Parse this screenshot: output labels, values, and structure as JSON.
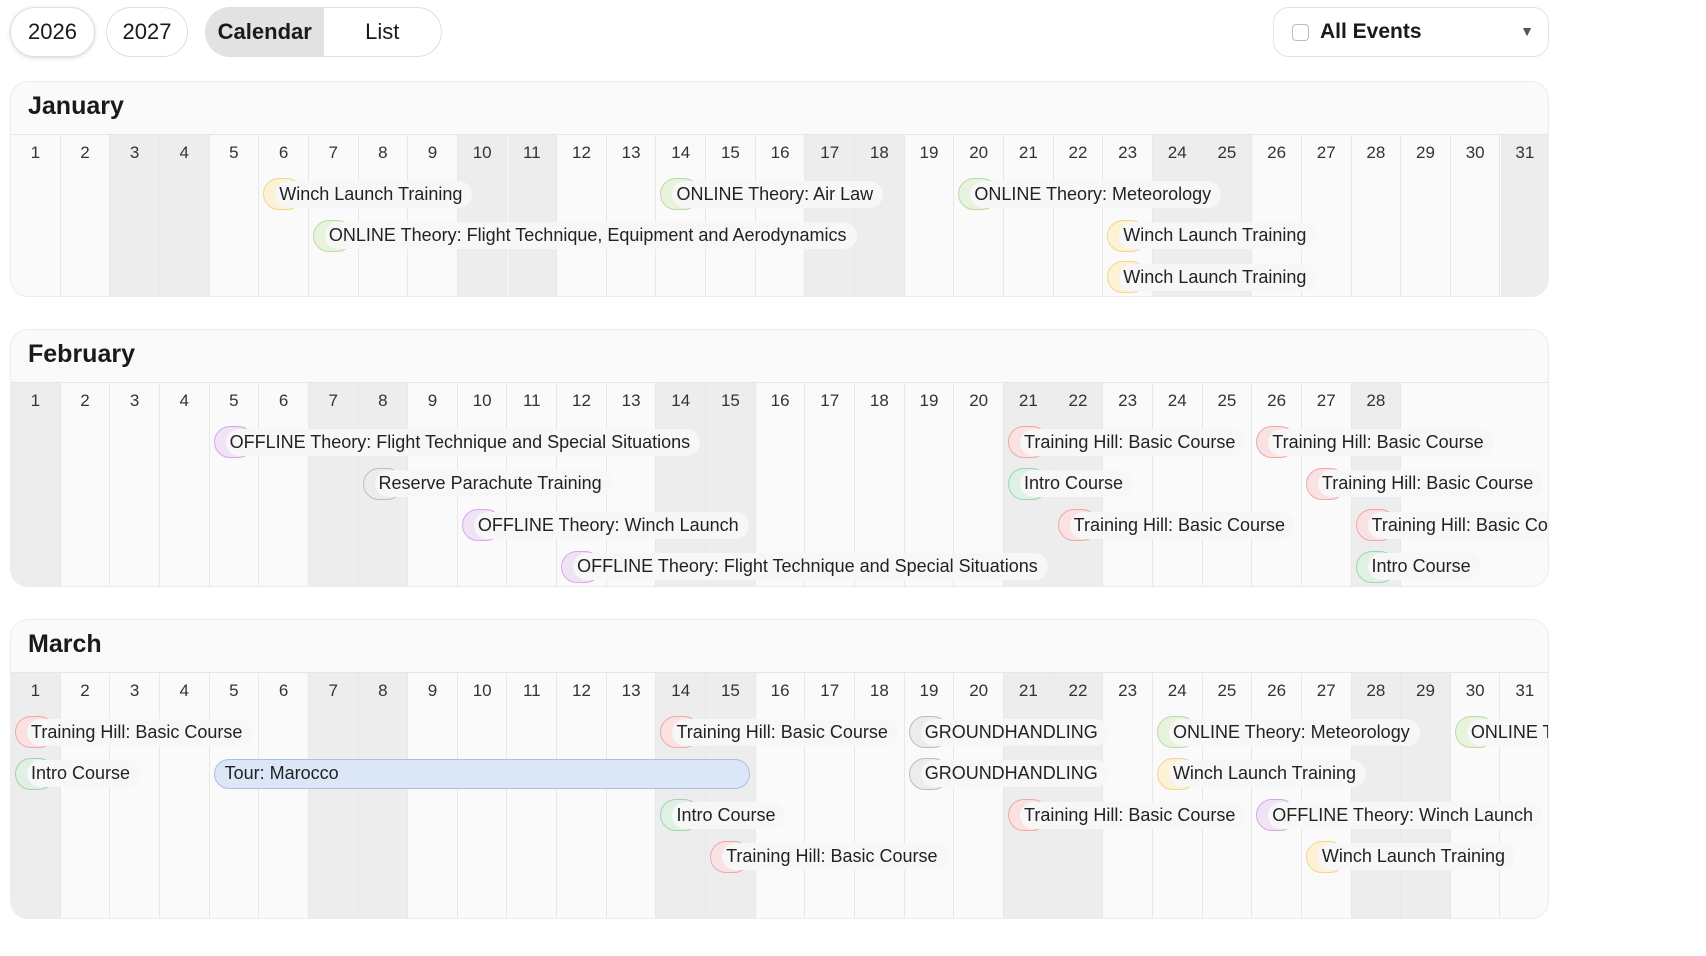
{
  "years": {
    "y2026": "2026",
    "y2027": "2027"
  },
  "view": {
    "calendar": "Calendar",
    "list": "List"
  },
  "filter": {
    "label": "All Events",
    "caret": "▼"
  },
  "colors": {
    "winch": {
      "bg": "#fdf2d6",
      "bd": "#f0d78e"
    },
    "online": {
      "bg": "#e7f3dc",
      "bd": "#bddba3"
    },
    "offline": {
      "bg": "#f1e3f6",
      "bd": "#d7a8e6"
    },
    "hill": {
      "bg": "#fbe2e2",
      "bd": "#eba9a9"
    },
    "intro": {
      "bg": "#def1e4",
      "bd": "#9fd3af"
    },
    "gray": {
      "bg": "#ececec",
      "bd": "#bdbdbd"
    },
    "tour": {
      "bg": "#dbe6f7",
      "bd": "#a8bfe6"
    }
  },
  "months": [
    {
      "name": "January",
      "days": 31,
      "weekends": [
        3,
        4,
        10,
        11,
        17,
        18,
        24,
        25,
        31
      ],
      "events": [
        {
          "day": 6,
          "row": 0,
          "type": "winch",
          "label": "Winch Launch Training"
        },
        {
          "day": 14,
          "row": 0,
          "type": "online",
          "label": "ONLINE Theory: Air Law"
        },
        {
          "day": 20,
          "row": 0,
          "type": "online",
          "label": "ONLINE Theory: Meteorology"
        },
        {
          "day": 7,
          "row": 1,
          "type": "online",
          "label": "ONLINE Theory: Flight Technique, Equipment and Aerodynamics"
        },
        {
          "day": 23,
          "row": 1,
          "type": "winch",
          "label": "Winch Launch Training"
        },
        {
          "day": 23,
          "row": 2,
          "type": "winch",
          "label": "Winch Launch Training"
        }
      ]
    },
    {
      "name": "February",
      "days": 28,
      "weekends": [
        1,
        7,
        8,
        14,
        15,
        21,
        22,
        28
      ],
      "events": [
        {
          "day": 5,
          "row": 0,
          "type": "offline",
          "label": "OFFLINE Theory: Flight Technique and Special Situations"
        },
        {
          "day": 21,
          "row": 0,
          "type": "hill",
          "label": "Training Hill: Basic Course"
        },
        {
          "day": 26,
          "row": 0,
          "type": "hill",
          "label": "Training Hill: Basic Course"
        },
        {
          "day": 8,
          "row": 1,
          "type": "gray",
          "label": "Reserve Parachute Training"
        },
        {
          "day": 21,
          "row": 1,
          "type": "intro",
          "label": "Intro Course"
        },
        {
          "day": 27,
          "row": 1,
          "type": "hill",
          "label": "Training Hill: Basic Course"
        },
        {
          "day": 10,
          "row": 2,
          "type": "offline",
          "label": "OFFLINE Theory: Winch Launch"
        },
        {
          "day": 22,
          "row": 2,
          "type": "hill",
          "label": "Training Hill: Basic Course"
        },
        {
          "day": 28,
          "row": 2,
          "type": "hill",
          "label": "Training Hill: Basic Course"
        },
        {
          "day": 12,
          "row": 3,
          "type": "offline",
          "label": "OFFLINE Theory: Flight Technique and Special Situations"
        },
        {
          "day": 28,
          "row": 3,
          "type": "intro",
          "label": "Intro Course"
        }
      ]
    },
    {
      "name": "March",
      "days": 31,
      "weekends": [
        1,
        7,
        8,
        14,
        15,
        21,
        22,
        28,
        29
      ],
      "events": [
        {
          "day": 1,
          "row": 0,
          "type": "hill",
          "label": "Training Hill: Basic Course"
        },
        {
          "day": 14,
          "row": 0,
          "type": "hill",
          "label": "Training Hill: Basic Course"
        },
        {
          "day": 19,
          "row": 0,
          "type": "gray",
          "label": "GROUNDHANDLING"
        },
        {
          "day": 24,
          "row": 0,
          "type": "online",
          "label": "ONLINE Theory: Meteorology"
        },
        {
          "day": 30,
          "row": 0,
          "type": "online",
          "label": "ONLINE Th"
        },
        {
          "day": 1,
          "row": 1,
          "type": "intro",
          "label": "Intro Course"
        },
        {
          "day": 19,
          "row": 1,
          "type": "gray",
          "label": "GROUNDHANDLING"
        },
        {
          "day": 24,
          "row": 1,
          "type": "winch",
          "label": "Winch Launch Training"
        },
        {
          "day": 14,
          "row": 2,
          "type": "intro",
          "label": "Intro Course"
        },
        {
          "day": 21,
          "row": 2,
          "type": "hill",
          "label": "Training Hill: Basic Course"
        },
        {
          "day": 26,
          "row": 2,
          "type": "offline",
          "label": "OFFLINE Theory: Winch Launch"
        },
        {
          "day": 15,
          "row": 3,
          "type": "hill",
          "label": "Training Hill: Basic Course"
        },
        {
          "day": 27,
          "row": 3,
          "type": "winch",
          "label": "Winch Launch Training"
        }
      ],
      "tours": [
        {
          "start": 5,
          "end": 15,
          "row": 1,
          "label": "Tour: Marocco"
        }
      ]
    }
  ]
}
